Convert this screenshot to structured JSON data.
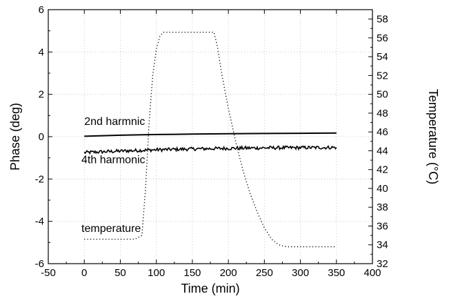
{
  "chart_data": {
    "type": "line",
    "xlabel": "Time (min)",
    "ylabel": "Phase (deg)",
    "y2label": "Temperature (°C)",
    "xlim": [
      -50,
      400
    ],
    "ylim": [
      -6,
      6
    ],
    "y2lim": [
      32,
      59
    ],
    "xticks": [
      -50,
      0,
      50,
      100,
      150,
      200,
      250,
      300,
      350,
      400
    ],
    "yticks": [
      -6,
      -4,
      -2,
      0,
      2,
      4,
      6
    ],
    "y2ticks": [
      32,
      34,
      36,
      38,
      40,
      42,
      44,
      46,
      48,
      50,
      52,
      54,
      56,
      58
    ],
    "grid": true,
    "series": [
      {
        "name": "2nd harmnic",
        "axis": "left",
        "style": "solid",
        "x": [
          0,
          50,
          100,
          150,
          200,
          250,
          300,
          350
        ],
        "y": [
          0.02,
          0.07,
          0.1,
          0.12,
          0.14,
          0.15,
          0.16,
          0.17
        ]
      },
      {
        "name": "4th harmonic",
        "axis": "left",
        "style": "noisy",
        "x": [
          0,
          50,
          100,
          150,
          200,
          250,
          300,
          350
        ],
        "y": [
          -0.75,
          -0.68,
          -0.62,
          -0.58,
          -0.55,
          -0.53,
          -0.52,
          -0.51
        ]
      },
      {
        "name": "temperature",
        "axis": "right",
        "style": "dotted",
        "x": [
          0,
          70,
          80,
          85,
          90,
          95,
          100,
          105,
          110,
          120,
          150,
          180,
          185,
          190,
          200,
          210,
          220,
          230,
          240,
          250,
          260,
          270,
          280,
          300,
          350
        ],
        "y": [
          34.6,
          34.6,
          35,
          40,
          47,
          52,
          54.8,
          56.2,
          56.6,
          56.6,
          56.6,
          56.6,
          55,
          52.5,
          48.5,
          45,
          42,
          39.5,
          37.5,
          35.8,
          34.6,
          34,
          33.8,
          33.8,
          33.8
        ]
      }
    ],
    "annotations": [
      {
        "text": "2nd harmnic",
        "x": 0,
        "y": 0.55,
        "axis": "left"
      },
      {
        "text": "4th harmonic",
        "x": -4,
        "y": -1.25,
        "axis": "left"
      },
      {
        "text": "temperature",
        "x": -4,
        "y": -4.5,
        "axis": "left"
      }
    ]
  }
}
